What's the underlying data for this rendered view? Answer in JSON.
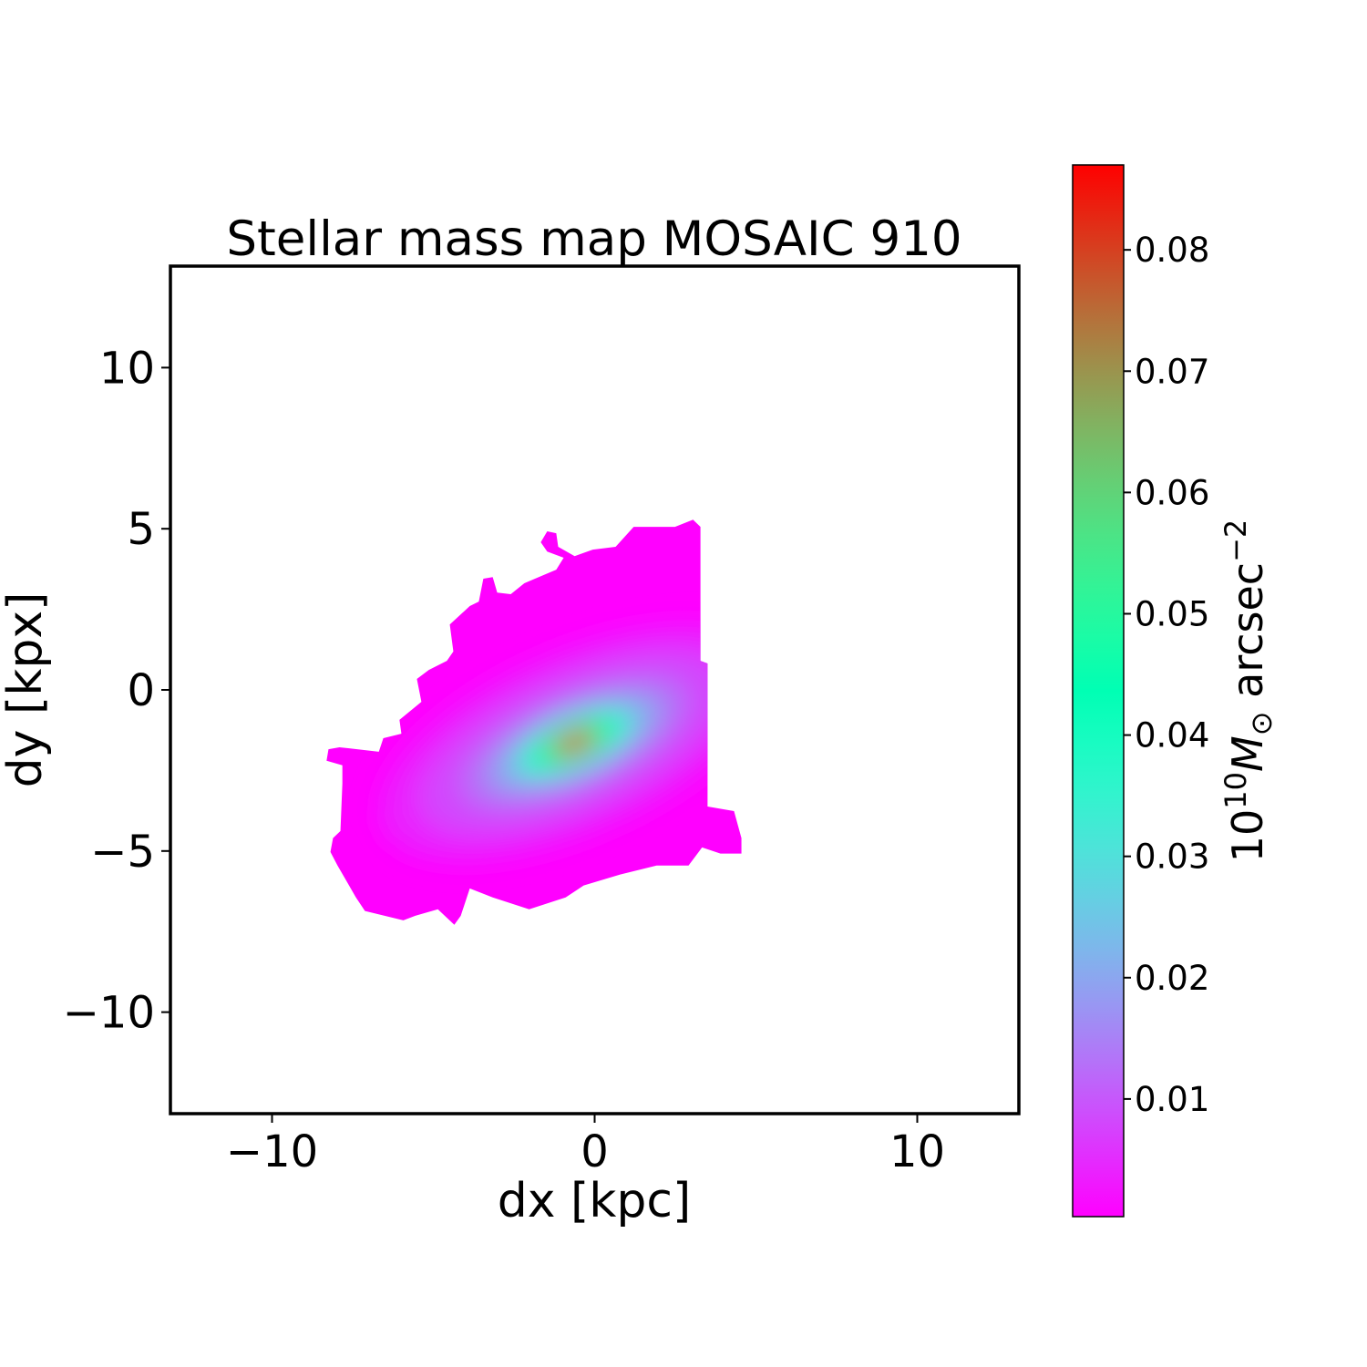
{
  "chart_data": {
    "type": "heatmap",
    "title": "Stellar mass map MOSAIC 910",
    "xlabel": "dx [kpc]",
    "ylabel": "dy [kpx]",
    "xlim": [
      -13.15,
      13.15
    ],
    "ylim": [
      -13.15,
      13.15
    ],
    "xticks": [
      {
        "value": -10,
        "label": "−10"
      },
      {
        "value": 0,
        "label": "0"
      },
      {
        "value": 10,
        "label": "10"
      }
    ],
    "yticks": [
      {
        "value": 10,
        "label": "10"
      },
      {
        "value": 5,
        "label": "5"
      },
      {
        "value": 0,
        "label": "0"
      },
      {
        "value": -5,
        "label": "−5"
      },
      {
        "value": -10,
        "label": "−10"
      }
    ],
    "grid": false,
    "colormap": "rainbow",
    "colorbar": {
      "label_base": "10",
      "label_exp": "10",
      "label_symbol": "M",
      "label_sub": "⊙",
      "label_unit": " arcsec",
      "label_unit_exp": "−2",
      "range": [
        0.0003,
        0.087
      ],
      "ticks": [
        {
          "value": 0.01,
          "label": "0.01"
        },
        {
          "value": 0.02,
          "label": "0.02"
        },
        {
          "value": 0.03,
          "label": "0.03"
        },
        {
          "value": 0.04,
          "label": "0.04"
        },
        {
          "value": 0.05,
          "label": "0.05"
        },
        {
          "value": 0.06,
          "label": "0.06"
        },
        {
          "value": 0.07,
          "label": "0.07"
        },
        {
          "value": 0.08,
          "label": "0.08"
        }
      ]
    },
    "peak": {
      "dx": -0.62,
      "dy": -1.64,
      "value": 0.087
    },
    "background_value": 0.0003,
    "mask_outline": [
      [
        -1.67,
        4.58
      ],
      [
        -1.47,
        4.92
      ],
      [
        -1.19,
        4.86
      ],
      [
        -1.13,
        4.44
      ],
      [
        -0.62,
        4.15
      ],
      [
        -0.06,
        4.35
      ],
      [
        0.65,
        4.44
      ],
      [
        1.21,
        5.06
      ],
      [
        2.49,
        5.06
      ],
      [
        3.05,
        5.28
      ],
      [
        3.28,
        5.06
      ],
      [
        3.28,
        0.9
      ],
      [
        3.5,
        0.82
      ],
      [
        3.5,
        -3.62
      ],
      [
        4.32,
        -3.76
      ],
      [
        4.55,
        -4.6
      ],
      [
        4.55,
        -5.08
      ],
      [
        3.9,
        -5.08
      ],
      [
        3.33,
        -4.89
      ],
      [
        2.91,
        -5.45
      ],
      [
        1.92,
        -5.45
      ],
      [
        0.79,
        -5.73
      ],
      [
        -0.34,
        -6.07
      ],
      [
        -0.9,
        -6.44
      ],
      [
        -2.03,
        -6.81
      ],
      [
        -3.16,
        -6.44
      ],
      [
        -3.87,
        -6.16
      ],
      [
        -4.15,
        -7.01
      ],
      [
        -4.35,
        -7.29
      ],
      [
        -4.86,
        -6.81
      ],
      [
        -5.56,
        -7.01
      ],
      [
        -5.93,
        -7.15
      ],
      [
        -7.12,
        -6.86
      ],
      [
        -7.4,
        -6.44
      ],
      [
        -7.97,
        -5.45
      ],
      [
        -8.19,
        -5.03
      ],
      [
        -8.11,
        -4.6
      ],
      [
        -7.88,
        -4.38
      ],
      [
        -7.82,
        -2.91
      ],
      [
        -7.82,
        -2.34
      ],
      [
        -8.31,
        -2.2
      ],
      [
        -8.25,
        -1.84
      ],
      [
        -7.91,
        -1.78
      ],
      [
        -6.69,
        -1.92
      ],
      [
        -6.55,
        -1.5
      ],
      [
        -5.99,
        -1.36
      ],
      [
        -6.05,
        -0.93
      ],
      [
        -5.37,
        -0.37
      ],
      [
        -5.51,
        0.34
      ],
      [
        -5.14,
        0.62
      ],
      [
        -4.58,
        0.9
      ],
      [
        -4.38,
        1.19
      ],
      [
        -4.49,
        2.03
      ],
      [
        -3.87,
        2.6
      ],
      [
        -3.59,
        2.74
      ],
      [
        -3.45,
        3.45
      ],
      [
        -3.16,
        3.5
      ],
      [
        -3.02,
        3.02
      ],
      [
        -2.6,
        2.97
      ],
      [
        -2.18,
        3.31
      ],
      [
        -1.19,
        3.73
      ],
      [
        -0.96,
        4.1
      ],
      [
        -1.47,
        4.29
      ]
    ]
  }
}
